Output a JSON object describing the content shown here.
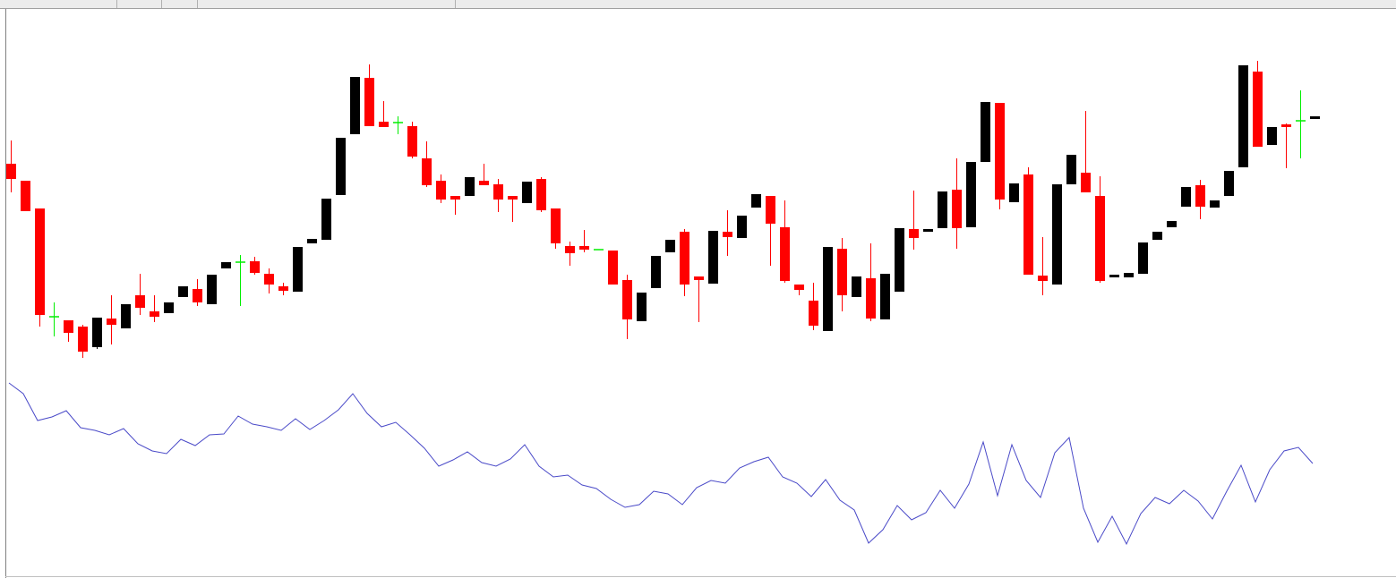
{
  "chart_data": [
    {
      "type": "candlestick",
      "up_color": "#000000",
      "down_color": "#ff0000",
      "doji_color": "#00ee00",
      "ylim": [
        0,
        360
      ],
      "open": [
        237,
        218,
        187,
        66,
        62,
        55,
        32,
        64,
        53,
        90,
        72,
        70,
        88,
        97,
        80,
        120,
        127,
        128,
        114,
        100,
        94,
        148,
        152,
        202,
        270,
        333,
        284,
        283,
        279,
        243,
        218,
        201,
        201,
        218,
        214,
        201,
        193,
        220,
        187,
        145,
        145,
        141,
        140,
        107,
        61,
        98,
        138,
        161,
        111,
        103,
        161,
        154,
        188,
        201,
        166,
        102,
        84,
        50,
        142,
        88,
        109,
        63,
        94,
        164,
        161,
        165,
        208,
        166,
        239,
        305,
        194,
        225,
        112,
        102,
        214,
        227,
        201,
        110,
        110,
        114,
        152,
        166,
        189,
        213,
        188,
        201,
        233,
        340,
        258,
        281,
        285,
        287
      ],
      "high": [
        263,
        218,
        187,
        82,
        62,
        57,
        65,
        90,
        80,
        114,
        90,
        82,
        100,
        108,
        113,
        127,
        135,
        133,
        120,
        104,
        144,
        153,
        198,
        266,
        334,
        348,
        307,
        290,
        284,
        262,
        225,
        201,
        222,
        237,
        220,
        201,
        217,
        222,
        187,
        150,
        163,
        141,
        140,
        113,
        93,
        134,
        152,
        164,
        111,
        162,
        185,
        179,
        203,
        201,
        196,
        102,
        104,
        144,
        154,
        111,
        148,
        114,
        165,
        207,
        164,
        206,
        243,
        239,
        306,
        305,
        215,
        233,
        155,
        214,
        247,
        296,
        223,
        113,
        115,
        149,
        161,
        173,
        211,
        219,
        196,
        229,
        347,
        352,
        278,
        282,
        319,
        290
      ],
      "low": [
        205,
        184,
        55,
        44,
        38,
        20,
        30,
        35,
        53,
        68,
        60,
        70,
        88,
        78,
        80,
        120,
        78,
        113,
        92,
        90,
        94,
        148,
        152,
        202,
        270,
        279,
        278,
        270,
        243,
        211,
        193,
        180,
        201,
        213,
        183,
        172,
        193,
        183,
        142,
        123,
        138,
        141,
        102,
        41,
        61,
        98,
        138,
        89,
        60,
        103,
        134,
        154,
        188,
        123,
        104,
        90,
        51,
        50,
        72,
        88,
        61,
        63,
        94,
        141,
        161,
        165,
        142,
        166,
        239,
        186,
        194,
        113,
        90,
        102,
        214,
        205,
        104,
        110,
        110,
        114,
        152,
        166,
        189,
        175,
        188,
        201,
        233,
        256,
        258,
        232,
        243,
        287
      ],
      "close": [
        220,
        184,
        68,
        66,
        48,
        27,
        65,
        57,
        80,
        76,
        66,
        82,
        100,
        82,
        113,
        127,
        127,
        115,
        102,
        95,
        144,
        153,
        198,
        266,
        334,
        279,
        278,
        283,
        245,
        213,
        197,
        197,
        222,
        213,
        197,
        197,
        217,
        185,
        148,
        137,
        141,
        141,
        102,
        63,
        93,
        134,
        152,
        102,
        107,
        162,
        155,
        179,
        203,
        170,
        106,
        96,
        56,
        144,
        90,
        111,
        64,
        114,
        165,
        154,
        164,
        206,
        165,
        239,
        306,
        197,
        215,
        113,
        106,
        214,
        247,
        205,
        106,
        113,
        115,
        149,
        161,
        173,
        211,
        189,
        196,
        229,
        347,
        256,
        278,
        278,
        285,
        290
      ]
    },
    {
      "type": "line",
      "color": "#4a4ac8",
      "ylim": [
        0,
        220
      ],
      "values": [
        212,
        200,
        170,
        174,
        181,
        162,
        159,
        154,
        161,
        144,
        136,
        133,
        149,
        142,
        154,
        155,
        175,
        166,
        163,
        159,
        172,
        160,
        170,
        182,
        200,
        178,
        163,
        168,
        154,
        139,
        119,
        126,
        135,
        123,
        119,
        127,
        143,
        119,
        107,
        109,
        98,
        94,
        82,
        73,
        76,
        91,
        88,
        76,
        95,
        103,
        100,
        117,
        124,
        129,
        107,
        100,
        85,
        104,
        81,
        70,
        33,
        48,
        75,
        59,
        67,
        92,
        72,
        99,
        146,
        86,
        143,
        103,
        84,
        134,
        151,
        72,
        34,
        63,
        32,
        66,
        84,
        77,
        92,
        80,
        60,
        91,
        120,
        79,
        115,
        136,
        140,
        122
      ]
    }
  ]
}
